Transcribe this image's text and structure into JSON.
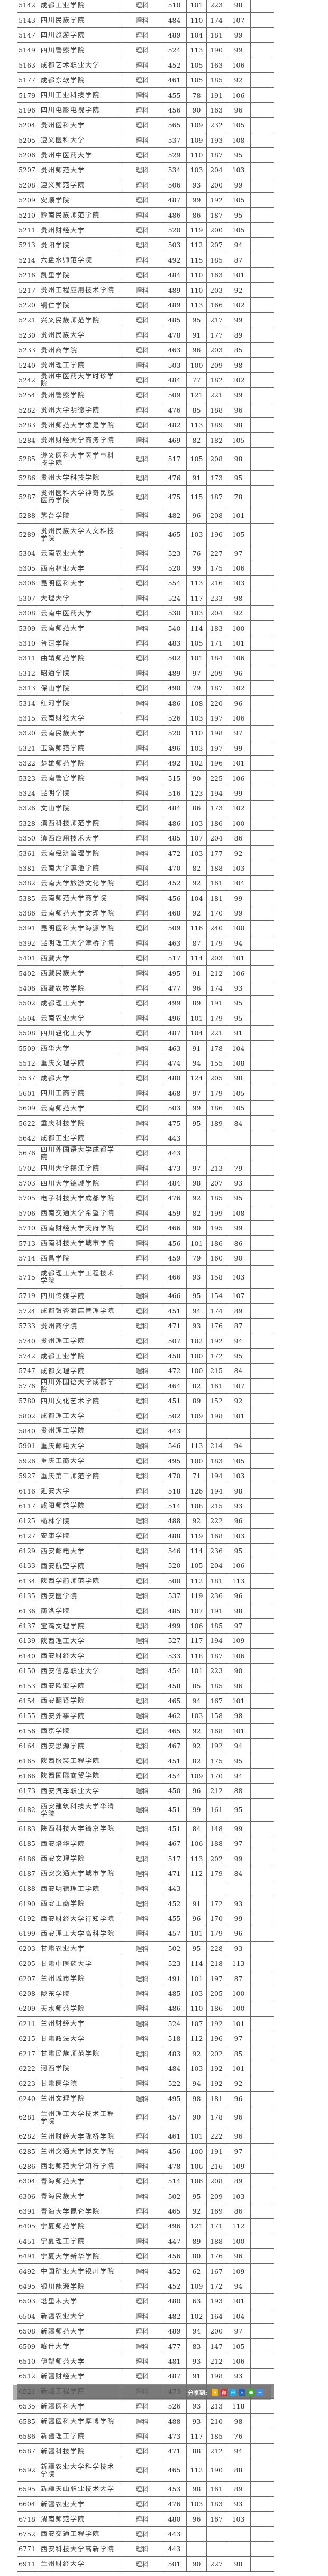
{
  "rows": [
    [
      "5142",
      "成都工业学院",
      "理科",
      "510",
      "101",
      "223",
      "98"
    ],
    [
      "5143",
      "四川民族学院",
      "理科",
      "484",
      "110",
      "174",
      "107"
    ],
    [
      "5147",
      "四川旅游学院",
      "理科",
      "489",
      "104",
      "181",
      "99"
    ],
    [
      "5149",
      "四川警察学院",
      "理科",
      "524",
      "113",
      "190",
      "99"
    ],
    [
      "5163",
      "成都艺术职业大学",
      "理科",
      "452",
      "105",
      "163",
      "106"
    ],
    [
      "5177",
      "成都东软学院",
      "理科",
      "461",
      "105",
      "185",
      "92"
    ],
    [
      "5179",
      "四川工业科技学院",
      "理科",
      "455",
      "78",
      "191",
      "106"
    ],
    [
      "5196",
      "四川电影电视学院",
      "理科",
      "456",
      "90",
      "163",
      "96"
    ],
    [
      "5204",
      "贵州医科大学",
      "理科",
      "565",
      "109",
      "232",
      "105"
    ],
    [
      "5205",
      "遵义医科大学",
      "理科",
      "537",
      "109",
      "193",
      "108"
    ],
    [
      "5206",
      "贵州中医药大学",
      "理科",
      "529",
      "110",
      "187",
      "95"
    ],
    [
      "5207",
      "贵州师范大学",
      "理科",
      "534",
      "103",
      "204",
      "103"
    ],
    [
      "5208",
      "遵义师范学院",
      "理科",
      "506",
      "93",
      "200",
      "99"
    ],
    [
      "5209",
      "安顺学院",
      "理科",
      "487",
      "99",
      "192",
      "105"
    ],
    [
      "5210",
      "黔南民族师范学院",
      "理科",
      "486",
      "86",
      "187",
      "95"
    ],
    [
      "5211",
      "贵州财经大学",
      "理科",
      "520",
      "119",
      "200",
      "105"
    ],
    [
      "5213",
      "贵阳学院",
      "理科",
      "503",
      "112",
      "207",
      "94"
    ],
    [
      "5214",
      "六盘水师范学院",
      "理科",
      "492",
      "115",
      "185",
      "87"
    ],
    [
      "5216",
      "凯里学院",
      "理科",
      "484",
      "110",
      "163",
      "101"
    ],
    [
      "5217",
      "贵州工程应用技术学院",
      "理科",
      "489",
      "110",
      "203",
      "92"
    ],
    [
      "5220",
      "铜仁学院",
      "理科",
      "489",
      "113",
      "166",
      "102"
    ],
    [
      "5221",
      "兴义民族师范学院",
      "理科",
      "485",
      "95",
      "217",
      "99"
    ],
    [
      "5230",
      "贵州民族大学",
      "理科",
      "478",
      "91",
      "177",
      "89"
    ],
    [
      "5233",
      "贵州商学院",
      "理科",
      "463",
      "96",
      "203",
      "85"
    ],
    [
      "5240",
      "贵州理工学院",
      "理科",
      "503",
      "100",
      "209",
      "98"
    ],
    [
      "5242",
      "贵州中医药大学时珍学院",
      "理科",
      "484",
      "77",
      "182",
      "102"
    ],
    [
      "5254",
      "贵州警察学院",
      "理科",
      "509",
      "121",
      "221",
      "99"
    ],
    [
      "5282",
      "贵州大学明德学院",
      "理科",
      "476",
      "85",
      "188",
      "96"
    ],
    [
      "5283",
      "贵州师范大学求是学院",
      "理科",
      "482",
      "113",
      "189",
      "98"
    ],
    [
      "5284",
      "贵州财经大学商务学院",
      "理科",
      "469",
      "82",
      "182",
      "105"
    ],
    [
      "5285",
      "遵义医科大学医学与科技学院",
      "理科",
      "517",
      "105",
      "208",
      "98"
    ],
    [
      "5286",
      "贵州大学科技学院",
      "理科",
      "476",
      "91",
      "173",
      "95"
    ],
    [
      "5287",
      "贵州医科大学神奇民族医药学院",
      "理科",
      "475",
      "115",
      "187",
      "78"
    ],
    [
      "5288",
      "茅台学院",
      "理科",
      "482",
      "96",
      "208",
      "101"
    ],
    [
      "5289",
      "贵州民族大学人文科技学院",
      "理科",
      "465",
      "103",
      "196",
      "105"
    ],
    [
      "5304",
      "云南农业大学",
      "理科",
      "523",
      "76",
      "227",
      "97"
    ],
    [
      "5305",
      "西南林业大学",
      "理科",
      "520",
      "99",
      "175",
      "106"
    ],
    [
      "5306",
      "昆明医科大学",
      "理科",
      "554",
      "113",
      "216",
      "103"
    ],
    [
      "5307",
      "大理大学",
      "理科",
      "524",
      "117",
      "233",
      "98"
    ],
    [
      "5308",
      "云南中医药大学",
      "理科",
      "530",
      "103",
      "204",
      "92"
    ],
    [
      "5309",
      "云南师范大学",
      "理科",
      "540",
      "114",
      "183",
      "100"
    ],
    [
      "5310",
      "普洱学院",
      "理科",
      "483",
      "105",
      "171",
      "101"
    ],
    [
      "5311",
      "曲靖师范学院",
      "理科",
      "502",
      "101",
      "184",
      "106"
    ],
    [
      "5312",
      "昭通学院",
      "理科",
      "489",
      "97",
      "209",
      "96"
    ],
    [
      "5313",
      "保山学院",
      "理科",
      "490",
      "79",
      "187",
      "102"
    ],
    [
      "5314",
      "红河学院",
      "理科",
      "486",
      "108",
      "220",
      "96"
    ],
    [
      "5315",
      "云南财经大学",
      "理科",
      "526",
      "103",
      "197",
      "106"
    ],
    [
      "5320",
      "云南民族大学",
      "理科",
      "520",
      "110",
      "198",
      "97"
    ],
    [
      "5321",
      "玉溪师范学院",
      "理科",
      "496",
      "103",
      "197",
      "99"
    ],
    [
      "5322",
      "楚雄师范学院",
      "理科",
      "492",
      "102",
      "196",
      "101"
    ],
    [
      "5323",
      "云南警官学院",
      "理科",
      "515",
      "90",
      "225",
      "106"
    ],
    [
      "5324",
      "昆明学院",
      "理科",
      "516",
      "123",
      "194",
      "99"
    ],
    [
      "5326",
      "文山学院",
      "理科",
      "484",
      "86",
      "173",
      "102"
    ],
    [
      "5328",
      "滇西科技师范学院",
      "理科",
      "486",
      "103",
      "186",
      "100"
    ],
    [
      "5350",
      "滇西应用技术大学",
      "理科",
      "485",
      "107",
      "204",
      "86"
    ],
    [
      "5361",
      "云南经济管理学院",
      "理科",
      "472",
      "103",
      "177",
      "92"
    ],
    [
      "5381",
      "云南大学滇池学院",
      "理科",
      "470",
      "82",
      "188",
      "103"
    ],
    [
      "5382",
      "云南大学旅游文化学院",
      "理科",
      "452",
      "92",
      "161",
      "104"
    ],
    [
      "5385",
      "云南师范大学商学院",
      "理科",
      "456",
      "104",
      "181",
      "99"
    ],
    [
      "5386",
      "云南师范大学文理学院",
      "理科",
      "468",
      "92",
      "170",
      "99"
    ],
    [
      "5391",
      "昆明医科大学海源学院",
      "理科",
      "509",
      "116",
      "240",
      "100"
    ],
    [
      "5392",
      "昆明理工大学津桥学院",
      "理科",
      "463",
      "87",
      "179",
      "94"
    ],
    [
      "5401",
      "西藏大学",
      "理科",
      "517",
      "114",
      "203",
      "101"
    ],
    [
      "5402",
      "西藏民族大学",
      "理科",
      "495",
      "91",
      "212",
      "106"
    ],
    [
      "5406",
      "西藏农牧学院",
      "理科",
      "477",
      "96",
      "174",
      "93"
    ],
    [
      "5502",
      "成都理工大学",
      "理科",
      "499",
      "89",
      "191",
      "95"
    ],
    [
      "5504",
      "云南农业大学",
      "理科",
      "496",
      "101",
      "179",
      "95"
    ],
    [
      "5508",
      "四川轻化工大学",
      "理科",
      "487",
      "104",
      "221",
      "91"
    ],
    [
      "5509",
      "西华大学",
      "理科",
      "463",
      "91",
      "178",
      "104"
    ],
    [
      "5512",
      "重庆文理学院",
      "理科",
      "474",
      "94",
      "155",
      "108"
    ],
    [
      "5537",
      "成都大学",
      "理科",
      "480",
      "124",
      "205",
      "98"
    ],
    [
      "5601",
      "四川工商学院",
      "理科",
      "468",
      "97",
      "179",
      "105"
    ],
    [
      "5609",
      "云南师范大学",
      "理科",
      "503",
      "99",
      "186",
      "105"
    ],
    [
      "5622",
      "重庆科技学院",
      "理科",
      "475",
      "95",
      "189",
      "84"
    ],
    [
      "5642",
      "成都工业学院",
      "理科",
      "443",
      "",
      "",
      ""
    ],
    [
      "5676",
      "四川外国语大学成都学院",
      "理科",
      "443",
      "",
      "",
      ""
    ],
    [
      "5702",
      "四川大学锦江学院",
      "理科",
      "473",
      "97",
      "213",
      "79"
    ],
    [
      "5703",
      "四川大学锦城学院",
      "理科",
      "484",
      "98",
      "207",
      "93"
    ],
    [
      "5705",
      "电子科技大学成都学院",
      "理科",
      "476",
      "92",
      "185",
      "95"
    ],
    [
      "5706",
      "西南交通大学希望学院",
      "理科",
      "459",
      "82",
      "199",
      "108"
    ],
    [
      "5710",
      "西南财经大学天府学院",
      "理科",
      "466",
      "90",
      "195",
      "99"
    ],
    [
      "5713",
      "西南科技大学城市学院",
      "理科",
      "456",
      "101",
      "186",
      "86"
    ],
    [
      "5714",
      "西昌学院",
      "理科",
      "459",
      "79",
      "160",
      "90"
    ],
    [
      "5715",
      "成都理工大学工程技术学院",
      "理科",
      "466",
      "93",
      "158",
      "103"
    ],
    [
      "5719",
      "四川传媒学院",
      "理科",
      "466",
      "95",
      "154",
      "107"
    ],
    [
      "5724",
      "成都银杏酒店管理学院",
      "理科",
      "451",
      "94",
      "174",
      "89"
    ],
    [
      "5733",
      "贵州商学院",
      "理科",
      "471",
      "93",
      "176",
      "87"
    ],
    [
      "5740",
      "贵州理工学院",
      "理科",
      "507",
      "102",
      "192",
      "94"
    ],
    [
      "5742",
      "成都工业学院",
      "理科",
      "458",
      "100",
      "172",
      "95"
    ],
    [
      "5747",
      "成都文理学院",
      "理科",
      "472",
      "100",
      "215",
      "84"
    ],
    [
      "5776",
      "四川外国语大学成都学院",
      "理科",
      "464",
      "82",
      "161",
      "107"
    ],
    [
      "5780",
      "四川文化艺术学院",
      "理科",
      "451",
      "89",
      "152",
      "92"
    ],
    [
      "5802",
      "成都理工大学",
      "理科",
      "502",
      "109",
      "198",
      "101"
    ],
    [
      "5840",
      "贵州理工学院",
      "理科",
      "443",
      "",
      "",
      ""
    ],
    [
      "5901",
      "重庆邮电大学",
      "理科",
      "546",
      "113",
      "214",
      "94"
    ],
    [
      "5926",
      "重庆工商大学",
      "理科",
      "495",
      "100",
      "183",
      "105"
    ],
    [
      "5927",
      "重庆第二师范学院",
      "理科",
      "470",
      "71",
      "194",
      "103"
    ],
    [
      "6116",
      "延安大学",
      "理科",
      "518",
      "126",
      "194",
      "98"
    ],
    [
      "6117",
      "咸阳师范学院",
      "理科",
      "514",
      "108",
      "215",
      "93"
    ],
    [
      "6125",
      "榆林学院",
      "理科",
      "488",
      "92",
      "222",
      "96"
    ],
    [
      "6127",
      "安康学院",
      "理科",
      "488",
      "119",
      "168",
      "103"
    ],
    [
      "6129",
      "西安邮电大学",
      "理科",
      "546",
      "114",
      "236",
      "95"
    ],
    [
      "6133",
      "西安航空学院",
      "理科",
      "520",
      "105",
      "204",
      "106"
    ],
    [
      "6134",
      "陕西学前师范学院",
      "理科",
      "500",
      "112",
      "181",
      "113"
    ],
    [
      "6135",
      "西安医学院",
      "理科",
      "537",
      "119",
      "236",
      "96"
    ],
    [
      "6136",
      "商洛学院",
      "理科",
      "485",
      "107",
      "191",
      "98"
    ],
    [
      "6137",
      "宝鸡文理学院",
      "理科",
      "499",
      "106",
      "185",
      "97"
    ],
    [
      "6139",
      "陕西理工大学",
      "理科",
      "527",
      "117",
      "194",
      "109"
    ],
    [
      "6140",
      "西安财经大学",
      "理科",
      "533",
      "118",
      "187",
      "106"
    ],
    [
      "6150",
      "西安信息职业大学",
      "理科",
      "454",
      "101",
      "223",
      "90"
    ],
    [
      "6153",
      "西安欧亚学院",
      "理科",
      "458",
      "85",
      "185",
      "96"
    ],
    [
      "6154",
      "西安翻译学院",
      "理科",
      "465",
      "94",
      "167",
      "101"
    ],
    [
      "6155",
      "西安外事学院",
      "理科",
      "462",
      "103",
      "158",
      "98"
    ],
    [
      "6156",
      "西京学院",
      "理科",
      "465",
      "92",
      "168",
      "101"
    ],
    [
      "6164",
      "西安思源学院",
      "理科",
      "467",
      "92",
      "192",
      "94"
    ],
    [
      "6165",
      "陕西服装工程学院",
      "理科",
      "451",
      "82",
      "175",
      "95"
    ],
    [
      "6166",
      "陕西国际商贸学院",
      "理科",
      "454",
      "109",
      "170",
      "94"
    ],
    [
      "6173",
      "西安汽车职业大学",
      "理科",
      "450",
      "96",
      "212",
      "88"
    ],
    [
      "6182",
      "西安建筑科技大学华清学院",
      "理科",
      "451",
      "99",
      "161",
      "95"
    ],
    [
      "6183",
      "陕西科技大学镐京学院",
      "理科",
      "451",
      "84",
      "148",
      "99"
    ],
    [
      "6185",
      "西安培华学院",
      "理科",
      "467",
      "106",
      "188",
      "97"
    ],
    [
      "6186",
      "西安文理学院",
      "理科",
      "517",
      "113",
      "202",
      "99"
    ],
    [
      "6187",
      "西安交通大学城市学院",
      "理科",
      "471",
      "112",
      "179",
      "84"
    ],
    [
      "6188",
      "西安明德理工学院",
      "理科",
      "443",
      "",
      "",
      ""
    ],
    [
      "6190",
      "西安工商学院",
      "理科",
      "452",
      "91",
      "172",
      "93"
    ],
    [
      "6192",
      "西安财经大学行知学院",
      "理科",
      "455",
      "96",
      "170",
      "99"
    ],
    [
      "6199",
      "西安理工大学高科学院",
      "理科",
      "457",
      "101",
      "179",
      "96"
    ],
    [
      "6203",
      "甘肃农业大学",
      "理科",
      "502",
      "95",
      "228",
      "93"
    ],
    [
      "6205",
      "甘肃中医药大学",
      "理科",
      "523",
      "114",
      "218",
      "113"
    ],
    [
      "6207",
      "兰州城市学院",
      "理科",
      "491",
      "101",
      "197",
      "87"
    ],
    [
      "6208",
      "陇东学院",
      "理科",
      "485",
      "103",
      "205",
      "100"
    ],
    [
      "6209",
      "天水师范学院",
      "理科",
      "486",
      "110",
      "186",
      "100"
    ],
    [
      "6211",
      "兰州财经大学",
      "理科",
      "524",
      "107",
      "192",
      "101"
    ],
    [
      "6215",
      "甘肃政法大学",
      "理科",
      "518",
      "112",
      "196",
      "97"
    ],
    [
      "6217",
      "甘肃民族师范学院",
      "理科",
      "483",
      "92",
      "202",
      "85"
    ],
    [
      "6222",
      "河西学院",
      "理科",
      "484",
      "103",
      "192",
      "101"
    ],
    [
      "6223",
      "甘肃医学院",
      "理科",
      "522",
      "94",
      "192",
      "92"
    ],
    [
      "6240",
      "兰州文理学院",
      "理科",
      "495",
      "98",
      "181",
      "96"
    ],
    [
      "6281",
      "兰州理工大学技术工程学院",
      "理科",
      "457",
      "90",
      "178",
      "96"
    ],
    [
      "6282",
      "兰州财经大学陇桥学院",
      "理科",
      "461",
      "101",
      "222",
      "96"
    ],
    [
      "6285",
      "兰州交通大学博文学院",
      "理科",
      "456",
      "100",
      "191",
      "97"
    ],
    [
      "6286",
      "西北师范大学知行学院",
      "理科",
      "478",
      "106",
      "216",
      "109"
    ],
    [
      "6304",
      "青海师范大学",
      "理科",
      "514",
      "106",
      "208",
      "89"
    ],
    [
      "6306",
      "青海民族大学",
      "理科",
      "502",
      "95",
      "209",
      "103"
    ],
    [
      "6391",
      "青海大学昆仑学院",
      "理科",
      "465",
      "92",
      "169",
      "86"
    ],
    [
      "6405",
      "宁夏师范学院",
      "理科",
      "496",
      "121",
      "171",
      "112"
    ],
    [
      "6451",
      "宁夏理工学院",
      "理科",
      "447",
      "89",
      "188",
      "100"
    ],
    [
      "6491",
      "宁夏大学新华学院",
      "理科",
      "456",
      "80",
      "176",
      "96"
    ],
    [
      "6492",
      "中国矿业大学银川学院",
      "理科",
      "452",
      "62",
      "167",
      "109"
    ],
    [
      "6495",
      "银川能源学院",
      "理科",
      "452",
      "109",
      "172",
      "94"
    ],
    [
      "6503",
      "塔里木大学",
      "理科",
      "480",
      "63",
      "193",
      "101"
    ],
    [
      "6504",
      "新疆农业大学",
      "理科",
      "482",
      "102",
      "164",
      "104"
    ],
    [
      "6508",
      "新疆师范大学",
      "理科",
      "489",
      "94",
      "200",
      "97"
    ],
    [
      "6509",
      "喀什大学",
      "理科",
      "477",
      "83",
      "147",
      "105"
    ],
    [
      "6510",
      "伊犁师范大学",
      "理科",
      "481",
      "93",
      "212",
      "106"
    ],
    [
      "6512",
      "新疆财经大学",
      "理科",
      "487",
      "91",
      "198",
      "93"
    ],
    [
      "6521",
      "新疆工程学院",
      "理科",
      "473",
      "",
      "",
      ""
    ],
    [
      "6535",
      "新疆医科大学",
      "理科",
      "526",
      "93",
      "213",
      "118"
    ],
    [
      "6585",
      "新疆医科大学厚博学院",
      "理科",
      "488",
      "93",
      "210",
      "98"
    ],
    [
      "6586",
      "新疆理工学院",
      "理科",
      "473",
      "117",
      "185",
      "76"
    ],
    [
      "6587",
      "新疆科技学院",
      "理科",
      "471",
      "88",
      "212",
      "94"
    ],
    [
      "6592",
      "新疆农业大学科学技术学院",
      "理科",
      "465",
      "112",
      "190",
      "88"
    ],
    [
      "6595",
      "新疆天山职业技术大学",
      "理科",
      "453",
      "98",
      "161",
      "89"
    ],
    [
      "6604",
      "新疆农业大学",
      "理科",
      "476",
      "103",
      "183",
      "93"
    ],
    [
      "6718",
      "渭南师范学院",
      "理科",
      "480",
      "96",
      "167",
      "103"
    ],
    [
      "6752",
      "西安交通工程学院",
      "理科",
      "443",
      "",
      "",
      ""
    ],
    [
      "6771",
      "西安科技大学高新学院",
      "理科",
      "443",
      "",
      "",
      ""
    ],
    [
      "6911",
      "兰州财经大学",
      "理科",
      "501",
      "90",
      "227",
      "98"
    ]
  ],
  "share_bar": {
    "label": "分享到:",
    "icons": [
      "qzone-star-icon",
      "weibo-icon",
      "tencent-weibo-icon",
      "renren-icon",
      "wechat-icon",
      "more-plus-icon"
    ],
    "icon_colors": [
      "#f2b01e",
      "#d52b2b",
      "#2aa7e0",
      "#1b5fb8",
      "#3cb034",
      "#3f8ee8"
    ]
  }
}
